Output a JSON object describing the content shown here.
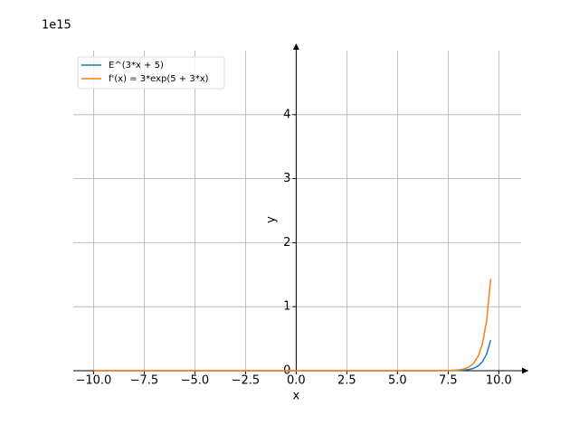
{
  "chart_data": {
    "type": "line",
    "offset_label": "1e15",
    "xlabel": "x",
    "ylabel": "y",
    "x": [
      -10,
      -5,
      0,
      5,
      7,
      7.5,
      8,
      8.25,
      8.5,
      8.75,
      9,
      9.2,
      9.4,
      9.6
    ],
    "series": [
      {
        "name": "E^(3*x + 5)",
        "color": "#1f77b4",
        "values": [
          0,
          0,
          0,
          0,
          0.0002,
          0.0009,
          0.0039,
          0.0083,
          0.0176,
          0.0373,
          0.079,
          0.144,
          0.262,
          0.478
        ]
      },
      {
        "name": "f'(x) = 3*exp(5 + 3*x)",
        "color": "#ff7f0e",
        "values": [
          0,
          0,
          0,
          0,
          0.0006,
          0.0027,
          0.0118,
          0.025,
          0.0529,
          0.112,
          0.237,
          0.432,
          0.786,
          1.434
        ]
      }
    ],
    "xlim": [
      -11,
      11.1
    ],
    "ylim": [
      0,
      5
    ],
    "xticks": [
      {
        "value": -10,
        "label": "−10.0"
      },
      {
        "value": -7.5,
        "label": "−7.5"
      },
      {
        "value": -5,
        "label": "−5.0"
      },
      {
        "value": -2.5,
        "label": "−2.5"
      },
      {
        "value": 0,
        "label": "0.0"
      },
      2.5,
      {
        "value": 5,
        "label": "5.0"
      },
      7.5,
      {
        "value": 10,
        "label": "10.0"
      }
    ],
    "yticks": [
      0,
      1,
      2,
      3,
      4
    ],
    "grid": true,
    "legend": "upper left"
  }
}
